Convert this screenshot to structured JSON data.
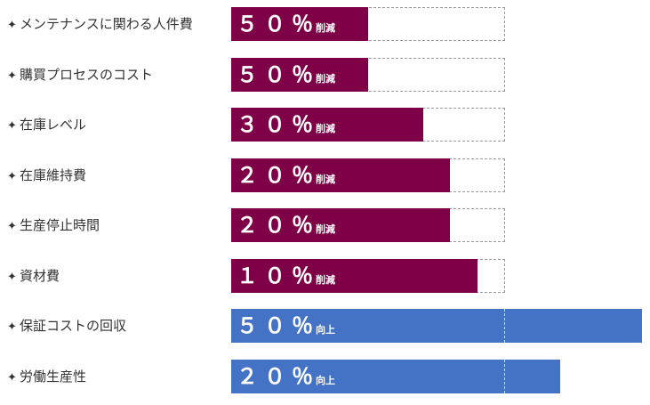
{
  "colors": {
    "decrease": "#7e0046",
    "increase": "#4472c4",
    "label_text": "#333333"
  },
  "icon_name": "star-bullet-icon",
  "bullet": "✦",
  "chart_data": {
    "type": "bar",
    "orientation": "horizontal",
    "categories": [
      "メンテナンスに関わる人件費",
      "購買プロセスのコスト",
      "在庫レベル",
      "在庫維持費",
      "生産停止時間",
      "資材費",
      "保証コストの回収",
      "労働生産性"
    ],
    "values": [
      50,
      50,
      30,
      20,
      20,
      10,
      50,
      20
    ],
    "value_labels": [
      "５０％",
      "５０％",
      "３０％",
      "２０％",
      "２０％",
      "１０％",
      "５０％",
      "２０％"
    ],
    "suffixes": [
      "削減",
      "削減",
      "削減",
      "削減",
      "削減",
      "削減",
      "向上",
      "向上"
    ],
    "unit": "%",
    "xlim": [
      0,
      100
    ],
    "decrease_rule": "bar fills (100 - value)% of the reference box",
    "increase_rule": "bar fills (100 + value)% of the reference box"
  }
}
